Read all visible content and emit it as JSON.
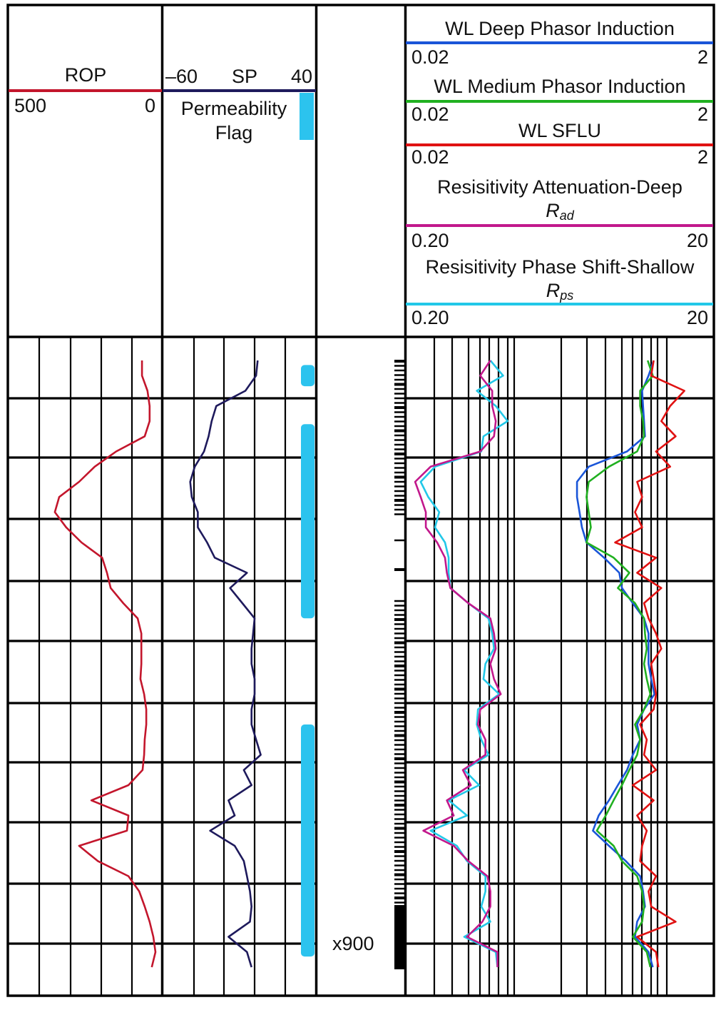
{
  "colors": {
    "rop": "#c3162c",
    "sp": "#1e1a5c",
    "perm_flag": "#2cc3ee",
    "deep": "#1a55d8",
    "medium": "#20b020",
    "sflu": "#e01212",
    "rad": "#c2188c",
    "rps": "#22c8e8"
  },
  "headers": {
    "rop": {
      "name": "ROP",
      "left": "500",
      "right": "0"
    },
    "sp": {
      "left": "–60",
      "name": "SP",
      "right": "40",
      "flag_line1": "Permeability",
      "flag_line2": "Flag"
    },
    "deep": {
      "name": "WL Deep Phasor Induction",
      "left": "0.02",
      "right": "2"
    },
    "medium": {
      "name": "WL Medium Phasor Induction",
      "left": "0.02",
      "right": "2"
    },
    "sflu": {
      "name": "WL SFLU",
      "left": "0.02",
      "right": "2"
    },
    "rad": {
      "name": "Resisitivity Attenuation-Deep",
      "sym": "R",
      "sub": "ad",
      "left": "0.20",
      "right": "20"
    },
    "rps": {
      "name": "Resisitivity Phase Shift-Shallow",
      "sym": "R",
      "sub": "ps",
      "left": "0.20",
      "right": "20"
    }
  },
  "depth_label": "x900",
  "chart_data": {
    "type": "line",
    "tracks": [
      {
        "track": "ROP",
        "scale": "linear",
        "range": [
          500,
          0
        ],
        "grid": true,
        "series": [
          {
            "name": "ROP",
            "values": [
              65,
              65,
              47,
              40,
              40,
              56,
              149,
              219,
              270,
              335,
              349,
              312,
              262,
              195,
              179,
              167,
              126,
              79,
              67,
              67,
              67,
              70,
              58,
              51,
              51,
              56,
              58,
              63,
              109,
              230,
              109,
              114,
              270,
              209,
              109,
              74,
              56,
              40,
              28,
              21,
              33
            ]
          }
        ]
      },
      {
        "track": "SP",
        "scale": "linear",
        "range": [
          -60,
          40
        ],
        "grid": true,
        "series": [
          {
            "name": "SP",
            "values": [
              2,
              1,
              -6,
              -25,
              -28,
              -30,
              -33,
              -39,
              -42,
              -41,
              -37,
              -37,
              -31,
              -26,
              -5,
              -16,
              -8,
              0,
              -1,
              -2,
              -2,
              0,
              0,
              -2,
              -2,
              1,
              4,
              -7,
              -2,
              -17,
              -13,
              -29,
              -13,
              -7,
              -5,
              -3,
              -2,
              -3,
              -17,
              -5,
              -2
            ]
          }
        ],
        "permeability_flag_sample_intervals": [
          [
            0.3,
            1.7
          ],
          [
            4.2,
            17
          ],
          [
            24,
            39.3
          ]
        ]
      },
      {
        "track": "Resistivity",
        "scale": "log",
        "grid": true,
        "series": [
          {
            "name": "WL Deep Phasor Induction",
            "range": [
              0.02,
              2
            ],
            "values": [
              0.82,
              0.76,
              0.69,
              0.7,
              0.71,
              0.72,
              0.55,
              0.31,
              0.26,
              0.26,
              0.27,
              0.28,
              0.3,
              0.39,
              0.49,
              0.51,
              0.6,
              0.71,
              0.76,
              0.76,
              0.76,
              0.79,
              0.83,
              0.71,
              0.64,
              0.67,
              0.6,
              0.55,
              0.48,
              0.42,
              0.36,
              0.33,
              0.42,
              0.54,
              0.67,
              0.7,
              0.72,
              0.64,
              0.62,
              0.76,
              0.81
            ]
          },
          {
            "name": "WL Medium Phasor Induction",
            "range": [
              0.02,
              2
            ],
            "values": [
              0.75,
              0.81,
              0.67,
              0.67,
              0.7,
              0.71,
              0.64,
              0.42,
              0.31,
              0.3,
              0.31,
              0.32,
              0.3,
              0.45,
              0.57,
              0.48,
              0.62,
              0.71,
              0.72,
              0.74,
              0.71,
              0.74,
              0.78,
              0.71,
              0.62,
              0.67,
              0.64,
              0.57,
              0.51,
              0.45,
              0.4,
              0.35,
              0.45,
              0.51,
              0.64,
              0.69,
              0.71,
              0.69,
              0.6,
              0.74,
              0.78
            ]
          },
          {
            "name": "WL SFLU",
            "range": [
              0.02,
              2
            ],
            "values": [
              0.82,
              0.79,
              1.3,
              1.05,
              0.92,
              1.14,
              0.85,
              1.05,
              0.64,
              0.69,
              0.62,
              0.69,
              0.46,
              0.85,
              0.64,
              0.92,
              0.71,
              0.76,
              0.85,
              0.92,
              0.79,
              0.82,
              0.85,
              0.82,
              0.67,
              0.74,
              0.71,
              0.85,
              0.6,
              0.82,
              0.64,
              0.74,
              0.69,
              0.67,
              0.85,
              0.76,
              0.79,
              1.14,
              0.64,
              0.85,
              0.88
            ]
          },
          {
            "name": "Resisitivity Attenuation-Deep",
            "range": [
              0.2,
              20
            ],
            "values": [
              0.71,
              0.61,
              0.73,
              0.73,
              0.77,
              0.75,
              0.61,
              0.29,
              0.23,
              0.25,
              0.27,
              0.27,
              0.32,
              0.36,
              0.37,
              0.39,
              0.51,
              0.71,
              0.75,
              0.77,
              0.71,
              0.75,
              0.83,
              0.61,
              0.59,
              0.66,
              0.66,
              0.47,
              0.53,
              0.37,
              0.41,
              0.26,
              0.41,
              0.51,
              0.68,
              0.71,
              0.71,
              0.63,
              0.5,
              0.79,
              0.79
            ]
          },
          {
            "name": "Resisitivity Phase Shift-Shallow",
            "range": [
              0.2,
              20
            ],
            "values": [
              0.71,
              0.86,
              0.58,
              0.77,
              0.92,
              0.64,
              0.62,
              0.31,
              0.25,
              0.28,
              0.33,
              0.31,
              0.36,
              0.38,
              0.38,
              0.39,
              0.51,
              0.69,
              0.73,
              0.75,
              0.66,
              0.64,
              0.81,
              0.59,
              0.58,
              0.62,
              0.69,
              0.48,
              0.6,
              0.38,
              0.5,
              0.29,
              0.43,
              0.5,
              0.66,
              0.66,
              0.62,
              0.71,
              0.48,
              0.77,
              0.79
            ]
          }
        ]
      }
    ]
  }
}
